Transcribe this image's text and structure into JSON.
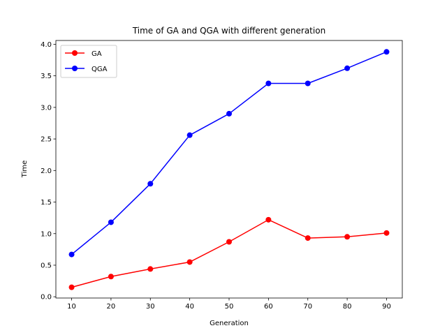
{
  "chart_data": {
    "type": "line",
    "title": "Time of GA and QGA with different generation",
    "xlabel": "Generation",
    "ylabel": "Time",
    "x": [
      10,
      20,
      30,
      40,
      50,
      60,
      70,
      80,
      90
    ],
    "xlim": [
      6,
      94
    ],
    "ylim": [
      -0.02,
      4.06
    ],
    "xticks": [
      "10",
      "20",
      "30",
      "40",
      "50",
      "60",
      "70",
      "80",
      "90"
    ],
    "yticks": [
      "0.0",
      "0.5",
      "1.0",
      "1.5",
      "2.0",
      "2.5",
      "3.0",
      "3.5",
      "4.0"
    ],
    "grid": false,
    "legend_position": "top-left",
    "series": [
      {
        "name": "GA",
        "color": "#ff0000",
        "marker": "circle",
        "values": [
          0.15,
          0.32,
          0.44,
          0.55,
          0.87,
          1.22,
          0.93,
          0.95,
          1.01
        ]
      },
      {
        "name": "QGA",
        "color": "#0000ff",
        "marker": "circle",
        "values": [
          0.67,
          1.18,
          1.79,
          2.56,
          2.9,
          3.38,
          3.38,
          3.62,
          3.88
        ]
      }
    ]
  }
}
